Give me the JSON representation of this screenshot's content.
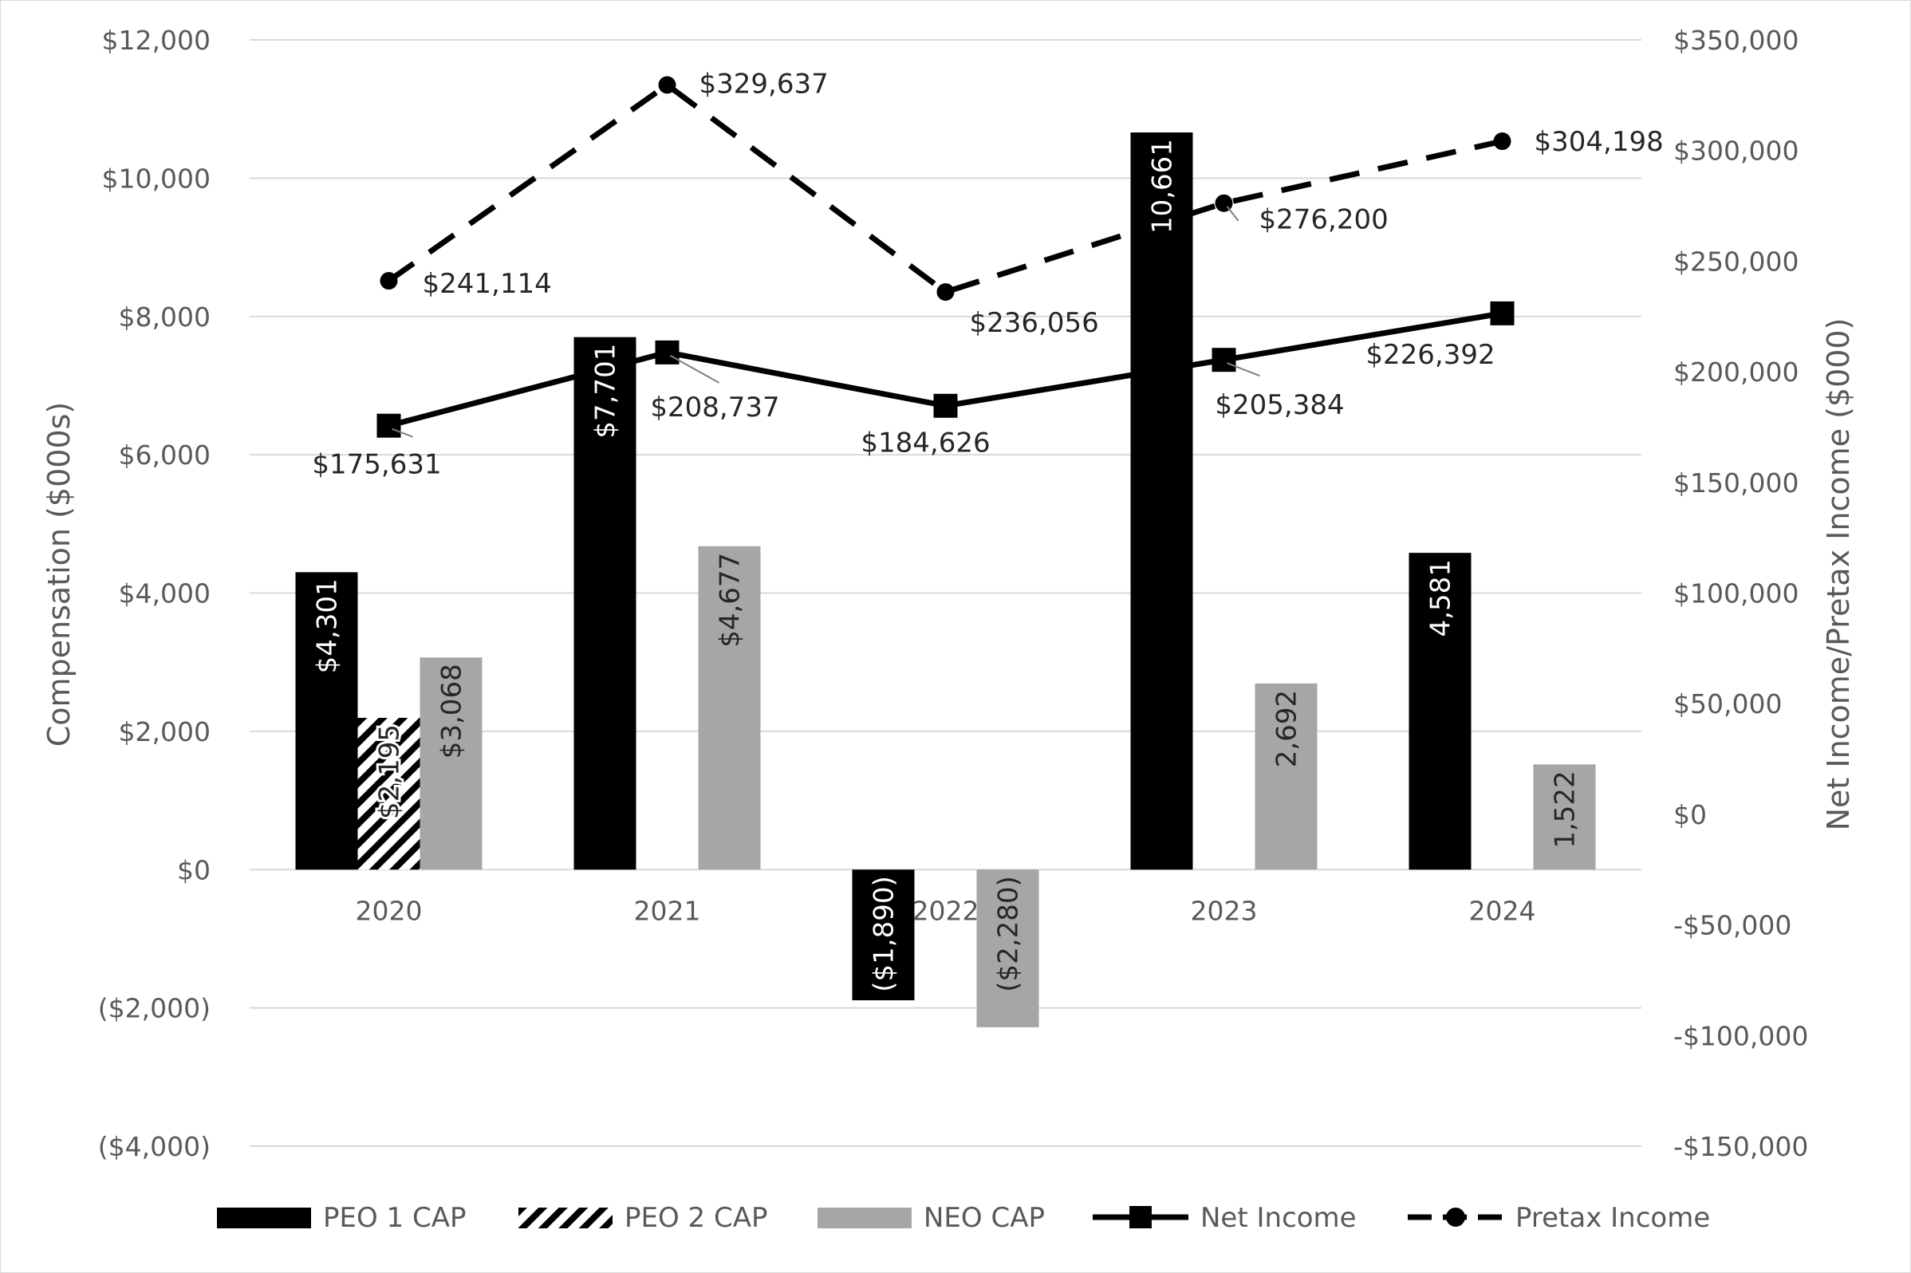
{
  "chart_data": {
    "type": "bar",
    "categories": [
      "2020",
      "2021",
      "2022",
      "2023",
      "2024"
    ],
    "series": [
      {
        "name": "PEO 1 CAP",
        "kind": "bar",
        "axis": "left",
        "color": "#000000",
        "values": [
          4301,
          7701,
          -1890,
          10661,
          4581
        ],
        "labels": [
          "$4,301",
          "$7,701",
          "($1,890)",
          "10,661",
          "4,581"
        ]
      },
      {
        "name": "PEO 2 CAP",
        "kind": "bar",
        "axis": "left",
        "pattern": "hatch",
        "values": [
          2195,
          null,
          null,
          null,
          null
        ],
        "labels": [
          "$2,195",
          "",
          "",
          "",
          ""
        ]
      },
      {
        "name": "NEO CAP",
        "kind": "bar",
        "axis": "left",
        "color": "#a6a6a6",
        "values": [
          3068,
          4677,
          -2280,
          2692,
          1522
        ],
        "labels": [
          "$3,068",
          "$4,677",
          "($2,280)",
          "2,692",
          "1,522"
        ]
      },
      {
        "name": "Net Income",
        "kind": "line",
        "axis": "right",
        "color": "#000000",
        "marker": "square",
        "dash": "solid",
        "values": [
          175631,
          208737,
          184626,
          205384,
          226392
        ],
        "labels": [
          "$175,631",
          "$208,737",
          "$184,626",
          "$205,384",
          "$226,392"
        ]
      },
      {
        "name": "Pretax Income",
        "kind": "line",
        "axis": "right",
        "color": "#000000",
        "marker": "circle",
        "dash": "dashed",
        "values": [
          241114,
          329637,
          236056,
          276200,
          304198
        ],
        "labels": [
          "$241,114",
          "$329,637",
          "$236,056",
          "$276,200",
          "$304,198"
        ]
      }
    ],
    "left_axis": {
      "title": "Compensation ($000s)",
      "range": [
        -4000,
        12000
      ],
      "ticks": [
        {
          "value": 12000,
          "label": "$12,000",
          "negative": false
        },
        {
          "value": 10000,
          "label": "$10,000",
          "negative": false
        },
        {
          "value": 8000,
          "label": "$8,000",
          "negative": false
        },
        {
          "value": 6000,
          "label": "$6,000",
          "negative": false
        },
        {
          "value": 4000,
          "label": "$4,000",
          "negative": false
        },
        {
          "value": 2000,
          "label": "$2,000",
          "negative": false
        },
        {
          "value": 0,
          "label": "$0",
          "negative": false
        },
        {
          "value": -2000,
          "label": "($2,000)",
          "negative": true
        },
        {
          "value": -4000,
          "label": "($4,000)",
          "negative": true
        }
      ]
    },
    "right_axis": {
      "title": "Net Income/Pretax Income ($000)",
      "range": [
        -150000,
        350000
      ],
      "ticks": [
        {
          "value": 350000,
          "label": "$350,000"
        },
        {
          "value": 300000,
          "label": "$300,000"
        },
        {
          "value": 250000,
          "label": "$250,000"
        },
        {
          "value": 200000,
          "label": "$200,000"
        },
        {
          "value": 150000,
          "label": "$150,000"
        },
        {
          "value": 100000,
          "label": "$100,000"
        },
        {
          "value": 50000,
          "label": "$50,000"
        },
        {
          "value": 0,
          "label": "$0"
        },
        {
          "value": -50000,
          "label": "-$50,000"
        },
        {
          "value": -100000,
          "label": "-$100,000"
        },
        {
          "value": -150000,
          "label": "-$150,000"
        }
      ]
    },
    "gridlines": true,
    "legend_position": "bottom",
    "colors": {
      "negative_tick": "#c00000",
      "gridline": "#d9d9d9",
      "axis_text": "#595959",
      "bar_black": "#000000",
      "bar_gray": "#a6a6a6"
    }
  }
}
